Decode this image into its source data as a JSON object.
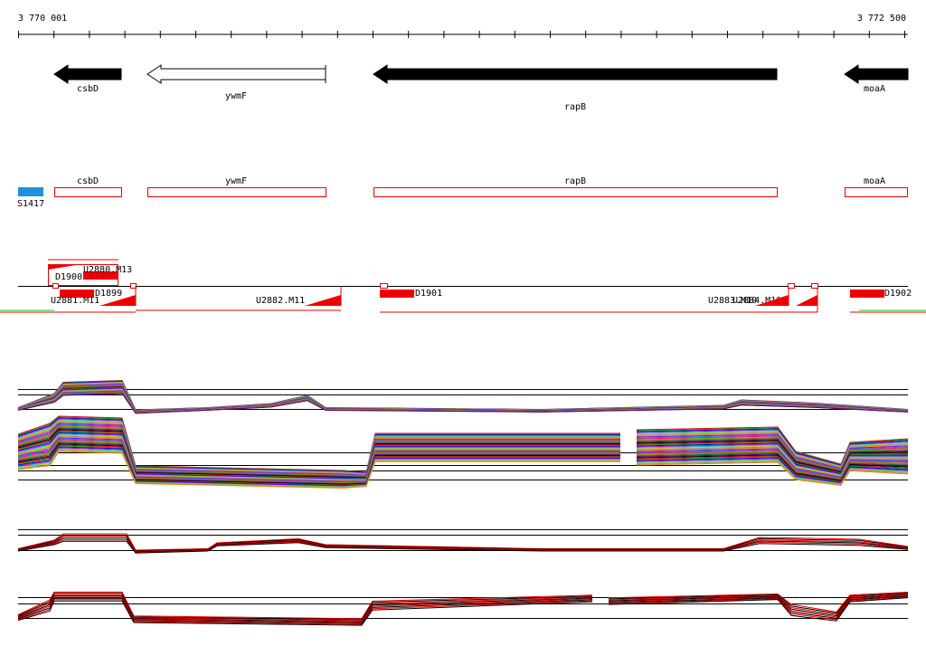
{
  "ruler": {
    "start": "3 770 001",
    "end": "3 772 500"
  },
  "genes": [
    {
      "label": "csbD"
    },
    {
      "label": "ywmF"
    },
    {
      "label": "rapB"
    },
    {
      "label": "moaA"
    }
  ],
  "annotations": [
    {
      "label": "csbD"
    },
    {
      "label": "ywmF"
    },
    {
      "label": "rapB"
    },
    {
      "label": "moaA"
    },
    {
      "label": "S1417"
    }
  ],
  "features": [
    {
      "label": "D1900"
    },
    {
      "label": "U2880.M13"
    },
    {
      "label": "D1899"
    },
    {
      "label": "U2881.M11"
    },
    {
      "label": "U2882.M11"
    },
    {
      "label": "D1901"
    },
    {
      "label": "U2883.M10"
    },
    {
      "label": "U2884.M10"
    },
    {
      "label": "D1902"
    }
  ]
}
